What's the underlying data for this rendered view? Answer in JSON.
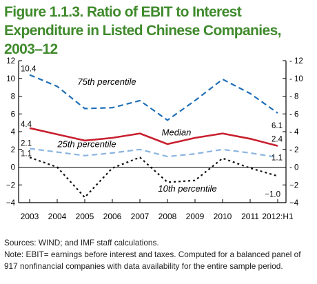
{
  "figure": {
    "title": "Figure 1.1.3. Ratio of EBIT to Interest Expenditure in Listed Chinese Companies, 2003–12"
  },
  "notes": {
    "sources": "Sources: WIND; and IMF staff calculations.",
    "note_line1": "Note: EBIT= earnings before interest and taxes. Computed for a balanced panel of",
    "note_line2": "917 nonfinancial companies with data availability for the entire sample period."
  },
  "colors": {
    "p75": "#1f6fb8",
    "median": "#c8202f",
    "p25": "#8ab4e0",
    "p10": "#111111",
    "title": "#3f8a2c"
  },
  "chart_data": {
    "type": "line",
    "title": "",
    "xlabel": "",
    "ylabel": "",
    "categories": [
      "2003",
      "2004",
      "2005",
      "2006",
      "2007",
      "2008",
      "2009",
      "2010",
      "2011",
      "2012:H1"
    ],
    "ylim": [
      -4,
      12
    ],
    "yticks": [
      -4,
      -2,
      0,
      2,
      4,
      6,
      8,
      10,
      12
    ],
    "ytick_labels": [
      "−4",
      "−2",
      "0",
      "2",
      "4",
      "6",
      "8",
      "10",
      "12"
    ],
    "grid": false,
    "series": [
      {
        "name": "75th percentile",
        "style": "dashed",
        "values": [
          10.4,
          9.1,
          6.6,
          6.7,
          7.5,
          5.3,
          7.5,
          9.9,
          8.3,
          6.1
        ],
        "start_label": "10.4",
        "end_label": "6.1"
      },
      {
        "name": "Median",
        "style": "solid",
        "values": [
          4.4,
          3.7,
          3.0,
          3.3,
          3.8,
          2.6,
          3.3,
          3.8,
          3.2,
          2.4
        ],
        "start_label": "4.4",
        "end_label": "2.4"
      },
      {
        "name": "25th percentile",
        "style": "dashed",
        "values": [
          2.1,
          1.7,
          1.3,
          1.6,
          2.0,
          1.2,
          1.5,
          2.0,
          1.6,
          1.1
        ],
        "start_label": "2.1",
        "end_label": "1.1"
      },
      {
        "name": "10th percentile",
        "style": "dotted",
        "values": [
          1.1,
          0.0,
          -3.4,
          -0.1,
          1.1,
          -1.7,
          -1.5,
          1.0,
          -0.1,
          -1.0
        ],
        "start_label": "1.1",
        "end_label": "−1.0"
      }
    ]
  }
}
